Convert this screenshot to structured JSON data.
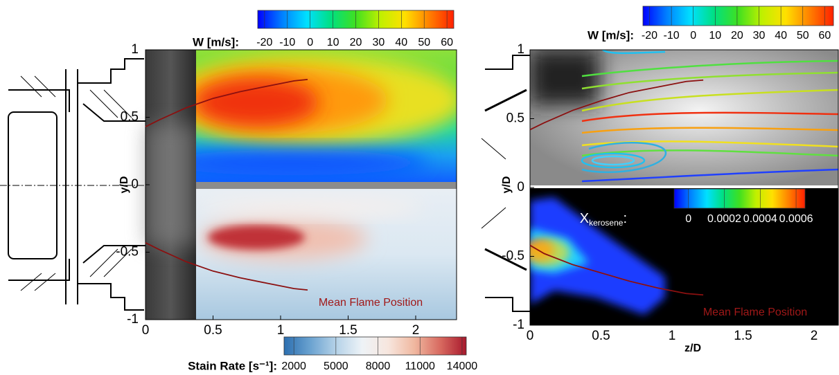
{
  "chart_data": [
    {
      "type": "field",
      "ylabel": "y/D",
      "xlim": [
        0,
        2.3
      ],
      "ylim": [
        -1,
        1
      ],
      "xticks": [
        0,
        0.5,
        1,
        1.5,
        2
      ],
      "yticks": [
        -1,
        -0.5,
        0,
        0.5,
        1
      ],
      "colorbars": [
        {
          "label": "W [m/s]:",
          "colormap": "rainbow",
          "lim": [
            -23,
            63
          ],
          "ticks": [
            -20,
            -10,
            0,
            10,
            20,
            30,
            40,
            50,
            60
          ]
        },
        {
          "label": "Stain Rate [s⁻¹]:",
          "colormap": "diverging",
          "lim": [
            1300,
            14300
          ],
          "ticks": [
            2000,
            5000,
            8000,
            11000,
            14000
          ]
        }
      ],
      "flame_color": "#8b1010",
      "flame_lines": [
        {
          "x": [
            0,
            0.1,
            0.3,
            0.5,
            0.7,
            0.9,
            1.1,
            1.2
          ],
          "y": [
            0.43,
            0.48,
            0.57,
            0.64,
            0.69,
            0.73,
            0.77,
            0.78
          ]
        },
        {
          "x": [
            0,
            0.1,
            0.3,
            0.5,
            0.7,
            0.9,
            1.1,
            1.2
          ],
          "y": [
            -0.43,
            -0.48,
            -0.57,
            -0.64,
            -0.69,
            -0.73,
            -0.77,
            -0.78
          ]
        }
      ],
      "annotation": "Mean Flame Position"
    },
    {
      "type": "field",
      "ylabel": "y/D",
      "xlabel": "z/D",
      "xlim": [
        0,
        2.17
      ],
      "ylim": [
        -1,
        1
      ],
      "xticks": [
        0,
        0.5,
        1,
        1.5,
        2
      ],
      "yticks": [
        -1,
        -0.5,
        0,
        0.5,
        1
      ],
      "colorbars": [
        {
          "label": "W [m/s]:",
          "colormap": "rainbow",
          "lim": [
            -23,
            64
          ],
          "ticks": [
            -20,
            -10,
            0,
            10,
            20,
            30,
            40,
            50,
            60
          ]
        },
        {
          "label": "X",
          "label_sub": "kerosene",
          "label_end": ":",
          "colormap": "rainbow",
          "lim": [
            -8e-05,
            0.00065
          ],
          "ticks": [
            0,
            0.0002,
            0.0004,
            0.0006
          ]
        }
      ],
      "flame_color": "#8b1010",
      "flame_lines": [
        {
          "x": [
            0,
            0.1,
            0.3,
            0.5,
            0.7,
            0.9,
            1.1,
            1.22
          ],
          "y": [
            0.42,
            0.47,
            0.56,
            0.63,
            0.69,
            0.73,
            0.77,
            0.78
          ]
        },
        {
          "x": [
            0,
            0.1,
            0.3,
            0.5,
            0.7,
            0.9,
            1.1,
            1.22
          ],
          "y": [
            -0.42,
            -0.48,
            -0.56,
            -0.62,
            -0.68,
            -0.73,
            -0.77,
            -0.78
          ]
        }
      ],
      "annotation": "Mean Flame Position"
    }
  ]
}
